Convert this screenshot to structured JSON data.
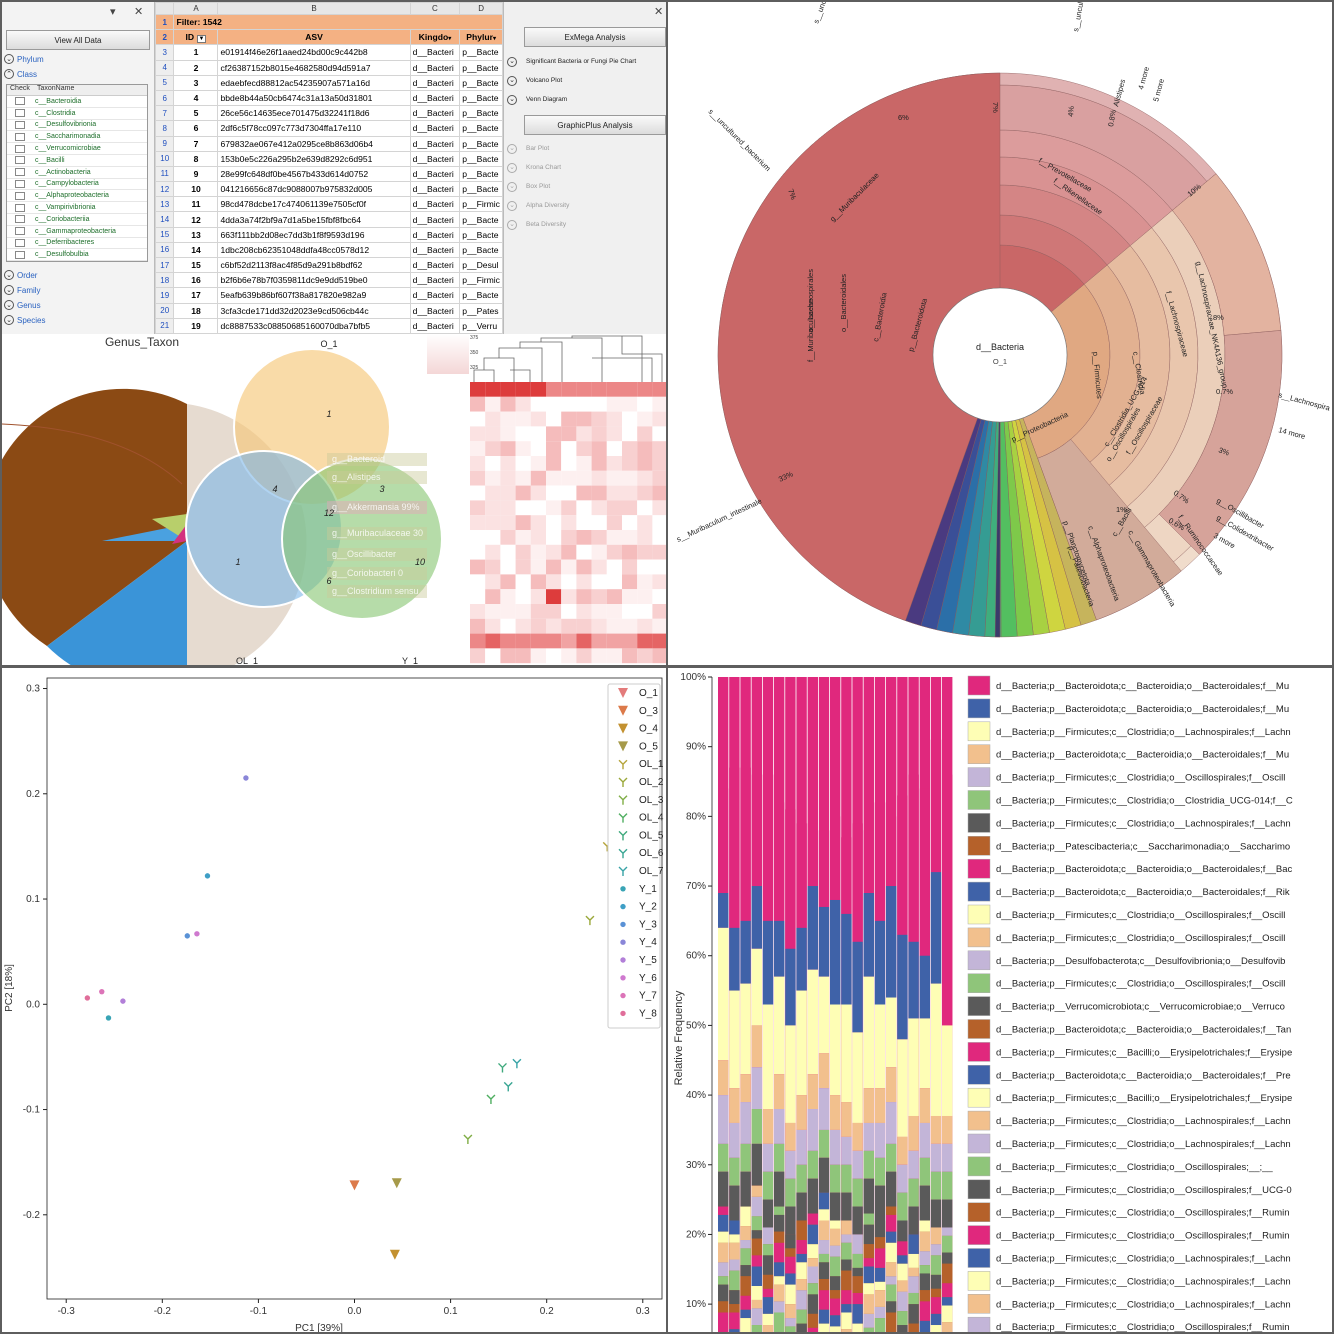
{
  "excel": {
    "close_glyph": "✕",
    "dropdown_glyph": "▾",
    "view_all_button": "View All Data",
    "tree": {
      "phylum": "Phylum",
      "class": "Class",
      "order": "Order",
      "family": "Family",
      "genus": "Genus",
      "species": "Species"
    },
    "check_header": "Check",
    "taxon_header": "TaxonName",
    "class_items": [
      "c__Bacteroidia",
      "c__Clostridia",
      "c__Desulfovibrionia",
      "c__Saccharimonadia",
      "c__Verrucomicrobiae",
      "c__Bacilli",
      "c__Actinobacteria",
      "c__Campylobacteria",
      "c__Alphaproteobacteria",
      "c__Vampirivibrionia",
      "c__Coriobacteriia",
      "c__Gammaproteobacteria",
      "c__Deferribacteres",
      "c__Desulfobulbia"
    ],
    "col_letters": [
      "A",
      "B",
      "C",
      "D"
    ],
    "filter_label": "Filter: 1542",
    "headers": [
      "ID",
      "ASV",
      "Kingdo",
      "Phylur"
    ],
    "row_numbers": [
      "1",
      "2",
      "3",
      "4",
      "5",
      "6",
      "7",
      "8",
      "9",
      "10",
      "11",
      "12",
      "13",
      "14",
      "15",
      "16",
      "17",
      "18",
      "19",
      "20",
      "21"
    ],
    "rows": [
      [
        "1",
        "e01914f46e26f1aaed24bd00c9c442b8",
        "d__Bacteri",
        "p__Bacte"
      ],
      [
        "2",
        "cf26387152b8015e4682580d94d591a7",
        "d__Bacteri",
        "p__Bacte"
      ],
      [
        "3",
        "edaebfecd88812ac54235907a571a16d",
        "d__Bacteri",
        "p__Bacte"
      ],
      [
        "4",
        "bbde8b44a50cb6474c31a13a50d31801",
        "d__Bacteri",
        "p__Bacte"
      ],
      [
        "5",
        "26ce56c14635ece701475d32241f18d6",
        "d__Bacteri",
        "p__Bacte"
      ],
      [
        "6",
        "2df6c5f78cc097c773d7304ffa17e110",
        "d__Bacteri",
        "p__Bacte"
      ],
      [
        "7",
        "679832ae067e412a0295ce8b863d06b4",
        "d__Bacteri",
        "p__Bacte"
      ],
      [
        "8",
        "153b0e5c226a295b2e639d8292c6d951",
        "d__Bacteri",
        "p__Bacte"
      ],
      [
        "9",
        "28e99fc648df0be4567b433d614d0752",
        "d__Bacteri",
        "p__Bacte"
      ],
      [
        "10",
        "041216656c87dc9088007b975832d005",
        "d__Bacteri",
        "p__Bacte"
      ],
      [
        "11",
        "98cd478dcbe17c474061139e7505cf0f",
        "d__Bacteri",
        "p__Firmic"
      ],
      [
        "12",
        "4dda3a74f2bf9a7d1a5be15fbf8fbc64",
        "d__Bacteri",
        "p__Bacte"
      ],
      [
        "13",
        "663f111bb2d08ec7dd3b1f8f9593d196",
        "d__Bacteri",
        "p__Bacte"
      ],
      [
        "14",
        "1dbc208cb62351048ddfa48cc0578d12",
        "d__Bacteri",
        "p__Bacte"
      ],
      [
        "15",
        "c6bf52d2113f8ac4f85d9a291b8bdf62",
        "d__Bacteri",
        "p__Desul"
      ],
      [
        "16",
        "b2f6b6e78b7f0359811dc9e9dd519be0",
        "d__Bacteri",
        "p__Firmic"
      ],
      [
        "17",
        "5eafb639b86bf607f38a817820e982a9",
        "d__Bacteri",
        "p__Bacte"
      ],
      [
        "18",
        "3cfa3cde171dd32d2023e9cd506cb44c",
        "d__Bacteri",
        "p__Pates"
      ],
      [
        "19",
        "dc8887533c08850685160070dba7bfb5",
        "d__Bacteri",
        "p__Verru"
      ]
    ],
    "right_panel": {
      "exmega_button": "ExMega Analysis",
      "significant": "Significant Bacteria or Fungi Pie Chart",
      "volcano": "Volcano Plot",
      "venn": "Venn Diagram",
      "graphicplus_button": "GraphicPlus Analysis",
      "bar": "Bar Plot",
      "krona": "Krona Chart",
      "box": "Box Plot",
      "alpha": "Alpha Diversity",
      "beta": "Beta Diversity"
    }
  },
  "venn": {
    "pie_title": "Genus_Taxon",
    "set_labels": [
      "O_1",
      "OL_1",
      "Y_1"
    ],
    "region_counts": [
      "1",
      "4",
      "3",
      "12",
      "1",
      "10",
      "6"
    ],
    "overlay_labels": [
      "g__Bacteroid",
      "g__Alistipes",
      "g__Akkermansia 99%",
      "g__Muribaculaceae 30",
      "g__Oscillibacter",
      "g__Coriobacteri 0",
      "g__Clostridium sensu"
    ],
    "heat_legend": [
      "375",
      "350",
      "325"
    ]
  },
  "krona": {
    "center_label": "d__Bacteria",
    "center_sub": "O_1",
    "labels": [
      "s__uncultured_Barnesiella",
      "6%",
      "s__uncultured_bacterium",
      "7%",
      "7%",
      "s__uncultured_Bacteroidal",
      "4%",
      "0.8%",
      "Alistipes",
      "4 more",
      "5 more",
      "g__Muribaculaceae",
      "f__Prevotellaceae",
      "f__Rikenellaceae",
      "10%",
      "f__Muribaculaceae",
      "o__Bacteroidales",
      "c__Bacteroidia",
      "p__Bacteroidota",
      "s__Muribaculum_intestinale",
      "33%",
      "f__Lachnospiraceae",
      "g__Lachnospiraceae_NK4A136_group",
      "8%",
      "o__Lachnospirales",
      "c__Clostridia",
      "p__Firmicutes",
      "0.7%",
      "s__Lachnospira",
      "14 more",
      "3%",
      "o__Oscillospirales",
      "c__Clostridia_UCG-014",
      "f__Oscillospiraceae",
      "g__Oscillibacter",
      "g__Colidextribacter",
      "3 more",
      "1%",
      "0.7%",
      "0.6%",
      "c__Bacilli",
      "f__Ruminococcaceae",
      "p__Proteobacteria",
      "c__Gammaproteobacteria",
      "p__Planctomycetota",
      "c__Alphaproteobacteria",
      "p__Patescibacteria"
    ]
  },
  "pcoa_chart": {
    "chart_data": {
      "type": "scatter",
      "xlabel": "PC1 [39%]",
      "ylabel": "PC2 [18%]",
      "xlim": [
        -0.32,
        0.32
      ],
      "ylim": [
        -0.28,
        0.31
      ],
      "xticks": [
        "-0.3",
        "-0.2",
        "-0.1",
        "0.0",
        "0.1",
        "0.2",
        "0.3"
      ],
      "yticks": [
        "0.3",
        "0.2",
        "0.1",
        "0.0",
        "-0.1",
        "-0.2"
      ],
      "legend_placement": "top-right",
      "series": [
        {
          "name": "O_1",
          "marker": "tri-down",
          "color": "#e37b7b",
          "x": [
            0.298
          ],
          "y": [
            0.28
          ]
        },
        {
          "name": "O_3",
          "marker": "tri-down",
          "color": "#dc7a4a",
          "x": [
            0.0
          ],
          "y": [
            -0.172
          ]
        },
        {
          "name": "O_4",
          "marker": "tri-down",
          "color": "#c39130",
          "x": [
            0.042
          ],
          "y": [
            -0.238
          ]
        },
        {
          "name": "O_5",
          "marker": "tri-down",
          "color": "#a69a4a",
          "x": [
            0.044
          ],
          "y": [
            -0.17
          ]
        },
        {
          "name": "OL_1",
          "marker": "y",
          "color": "#b5a43a",
          "x": [
            0.263
          ],
          "y": [
            0.15
          ]
        },
        {
          "name": "OL_2",
          "marker": "y",
          "color": "#9aa83a",
          "x": [
            0.245
          ],
          "y": [
            0.08
          ]
        },
        {
          "name": "OL_3",
          "marker": "y",
          "color": "#7fad45",
          "x": [
            0.118
          ],
          "y": [
            -0.128
          ]
        },
        {
          "name": "OL_4",
          "marker": "y",
          "color": "#4fae60",
          "x": [
            0.142
          ],
          "y": [
            -0.09
          ]
        },
        {
          "name": "OL_5",
          "marker": "y",
          "color": "#3ea97c",
          "x": [
            0.154
          ],
          "y": [
            -0.06
          ]
        },
        {
          "name": "OL_6",
          "marker": "y",
          "color": "#39a693",
          "x": [
            0.16
          ],
          "y": [
            -0.078
          ]
        },
        {
          "name": "OL_7",
          "marker": "y",
          "color": "#37a3a6",
          "x": [
            0.169
          ],
          "y": [
            -0.056
          ]
        },
        {
          "name": "Y_1",
          "marker": "dot",
          "color": "#39a4b5",
          "x": [
            -0.256
          ],
          "y": [
            -0.013
          ]
        },
        {
          "name": "Y_2",
          "marker": "dot",
          "color": "#3f9fc6",
          "x": [
            -0.153
          ],
          "y": [
            0.122
          ]
        },
        {
          "name": "Y_3",
          "marker": "dot",
          "color": "#5a92d6",
          "x": [
            -0.174
          ],
          "y": [
            0.065
          ]
        },
        {
          "name": "Y_4",
          "marker": "dot",
          "color": "#8a86d8",
          "x": [
            -0.113
          ],
          "y": [
            0.215
          ]
        },
        {
          "name": "Y_5",
          "marker": "dot",
          "color": "#b27fd8",
          "x": [
            -0.241
          ],
          "y": [
            0.003
          ]
        },
        {
          "name": "Y_6",
          "marker": "dot",
          "color": "#cf79cf",
          "x": [
            -0.164
          ],
          "y": [
            0.067
          ]
        },
        {
          "name": "Y_7",
          "marker": "dot",
          "color": "#dc74b8",
          "x": [
            -0.263
          ],
          "y": [
            0.012
          ]
        },
        {
          "name": "Y_8",
          "marker": "dot",
          "color": "#e06e9a",
          "x": [
            -0.278
          ],
          "y": [
            0.006
          ]
        }
      ]
    }
  },
  "bar_chart": {
    "chart_data": {
      "type": "bar",
      "stacked": true,
      "ylabel": "Relative Frequency",
      "yticks": [
        "100%",
        "90%",
        "80%",
        "70%",
        "60%",
        "50%",
        "40%",
        "30%",
        "20%",
        "10%"
      ],
      "ylim_visible": [
        0.06,
        1.0
      ],
      "colors": [
        "#e0287d",
        "#3f62a8",
        "#fefeb5",
        "#f2c08d",
        "#c3b5d8",
        "#8fc57a",
        "#5a5a5a",
        "#b5612a"
      ],
      "tops": [
        [
          0.84,
          0.87,
          0.87,
          0.86,
          0.86,
          0.82,
          0.81,
          0.79,
          0.79,
          0.78,
          0.8,
          0.77,
          0.79,
          0.78,
          0.82,
          0.8,
          0.83,
          0.86,
          0.84,
          0.91,
          0.86
        ],
        [
          0.69,
          0.64,
          0.65,
          0.7,
          0.65,
          0.65,
          0.61,
          0.64,
          0.7,
          0.67,
          0.68,
          0.66,
          0.62,
          0.69,
          0.65,
          0.7,
          0.63,
          0.62,
          0.6,
          0.72,
          0.5
        ],
        [
          0.64,
          0.55,
          0.56,
          0.61,
          0.53,
          0.57,
          0.5,
          0.55,
          0.58,
          0.57,
          0.53,
          0.53,
          0.49,
          0.57,
          0.53,
          0.54,
          0.48,
          0.51,
          0.51,
          0.56,
          0.5
        ],
        [
          0.45,
          0.41,
          0.43,
          0.5,
          0.38,
          0.43,
          0.36,
          0.4,
          0.43,
          0.46,
          0.4,
          0.39,
          0.36,
          0.41,
          0.41,
          0.44,
          0.34,
          0.37,
          0.41,
          0.37,
          0.37
        ],
        [
          0.4,
          0.36,
          0.39,
          0.44,
          0.33,
          0.38,
          0.32,
          0.35,
          0.38,
          0.41,
          0.35,
          0.34,
          0.32,
          0.36,
          0.36,
          0.39,
          0.3,
          0.32,
          0.36,
          0.33,
          0.33
        ],
        [
          0.33,
          0.31,
          0.33,
          0.38,
          0.29,
          0.33,
          0.28,
          0.3,
          0.32,
          0.35,
          0.3,
          0.3,
          0.28,
          0.32,
          0.31,
          0.33,
          0.26,
          0.28,
          0.31,
          0.29,
          0.29
        ],
        [
          0.29,
          0.27,
          0.29,
          0.33,
          0.25,
          0.29,
          0.24,
          0.26,
          0.28,
          0.31,
          0.26,
          0.26,
          0.24,
          0.28,
          0.27,
          0.29,
          0.22,
          0.24,
          0.27,
          0.25,
          0.25
        ],
        [
          0.24,
          0.22,
          0.24,
          0.27,
          0.21,
          0.24,
          0.2,
          0.22,
          0.23,
          0.26,
          0.22,
          0.22,
          0.2,
          0.23,
          0.22,
          0.24,
          0.19,
          0.2,
          0.22,
          0.21,
          0.21
        ]
      ],
      "legend": [
        {
          "label": "d__Bacteria;p__Bacteroidota;c__Bacteroidia;o__Bacteroidales;f__Mu",
          "color": "#e0287d"
        },
        {
          "label": "d__Bacteria;p__Bacteroidota;c__Bacteroidia;o__Bacteroidales;f__Mu",
          "color": "#3f62a8"
        },
        {
          "label": "d__Bacteria;p__Firmicutes;c__Clostridia;o__Lachnospirales;f__Lachn",
          "color": "#fefeb5"
        },
        {
          "label": "d__Bacteria;p__Bacteroidota;c__Bacteroidia;o__Bacteroidales;f__Mu",
          "color": "#f2c08d"
        },
        {
          "label": "d__Bacteria;p__Firmicutes;c__Clostridia;o__Oscillospirales;f__Oscill",
          "color": "#c3b5d8"
        },
        {
          "label": "d__Bacteria;p__Firmicutes;c__Clostridia;o__Clostridia_UCG-014;f__C",
          "color": "#8fc57a"
        },
        {
          "label": "d__Bacteria;p__Firmicutes;c__Clostridia;o__Lachnospirales;f__Lachn",
          "color": "#5a5a5a"
        },
        {
          "label": "d__Bacteria;p__Patescibacteria;c__Saccharimonadia;o__Saccharimo",
          "color": "#b5612a"
        },
        {
          "label": "d__Bacteria;p__Bacteroidota;c__Bacteroidia;o__Bacteroidales;f__Bac",
          "color": "#e0287d"
        },
        {
          "label": "d__Bacteria;p__Bacteroidota;c__Bacteroidia;o__Bacteroidales;f__Rik",
          "color": "#3f62a8"
        },
        {
          "label": "d__Bacteria;p__Firmicutes;c__Clostridia;o__Oscillospirales;f__Oscill",
          "color": "#fefeb5"
        },
        {
          "label": "d__Bacteria;p__Firmicutes;c__Clostridia;o__Oscillospirales;f__Oscill",
          "color": "#f2c08d"
        },
        {
          "label": "d__Bacteria;p__Desulfobacterota;c__Desulfovibrionia;o__Desulfovib",
          "color": "#c3b5d8"
        },
        {
          "label": "d__Bacteria;p__Firmicutes;c__Clostridia;o__Oscillospirales;f__Oscill",
          "color": "#8fc57a"
        },
        {
          "label": "d__Bacteria;p__Verrucomicrobiota;c__Verrucomicrobiae;o__Verruco",
          "color": "#5a5a5a"
        },
        {
          "label": "d__Bacteria;p__Bacteroidota;c__Bacteroidia;o__Bacteroidales;f__Tan",
          "color": "#b5612a"
        },
        {
          "label": "d__Bacteria;p__Firmicutes;c__Bacilli;o__Erysipelotrichales;f__Erysipe",
          "color": "#e0287d"
        },
        {
          "label": "d__Bacteria;p__Bacteroidota;c__Bacteroidia;o__Bacteroidales;f__Pre",
          "color": "#3f62a8"
        },
        {
          "label": "d__Bacteria;p__Firmicutes;c__Bacilli;o__Erysipelotrichales;f__Erysipe",
          "color": "#fefeb5"
        },
        {
          "label": "d__Bacteria;p__Firmicutes;c__Clostridia;o__Lachnospirales;f__Lachn",
          "color": "#f2c08d"
        },
        {
          "label": "d__Bacteria;p__Firmicutes;c__Clostridia;o__Lachnospirales;f__Lachn",
          "color": "#c3b5d8"
        },
        {
          "label": "d__Bacteria;p__Firmicutes;c__Clostridia;o__Oscillospirales;__;__",
          "color": "#8fc57a"
        },
        {
          "label": "d__Bacteria;p__Firmicutes;c__Clostridia;o__Oscillospirales;f__UCG-0",
          "color": "#5a5a5a"
        },
        {
          "label": "d__Bacteria;p__Firmicutes;c__Clostridia;o__Oscillospirales;f__Rumin",
          "color": "#b5612a"
        },
        {
          "label": "d__Bacteria;p__Firmicutes;c__Clostridia;o__Oscillospirales;f__Rumin",
          "color": "#e0287d"
        },
        {
          "label": "d__Bacteria;p__Firmicutes;c__Clostridia;o__Lachnospirales;f__Lachn",
          "color": "#3f62a8"
        },
        {
          "label": "d__Bacteria;p__Firmicutes;c__Clostridia;o__Lachnospirales;f__Lachn",
          "color": "#fefeb5"
        },
        {
          "label": "d__Bacteria;p__Firmicutes;c__Clostridia;o__Lachnospirales;f__Lachn",
          "color": "#f2c08d"
        },
        {
          "label": "d__Bacteria;p__Firmicutes;c__Clostridia;o__Oscillospirales;f__Rumin",
          "color": "#c3b5d8"
        }
      ]
    }
  }
}
